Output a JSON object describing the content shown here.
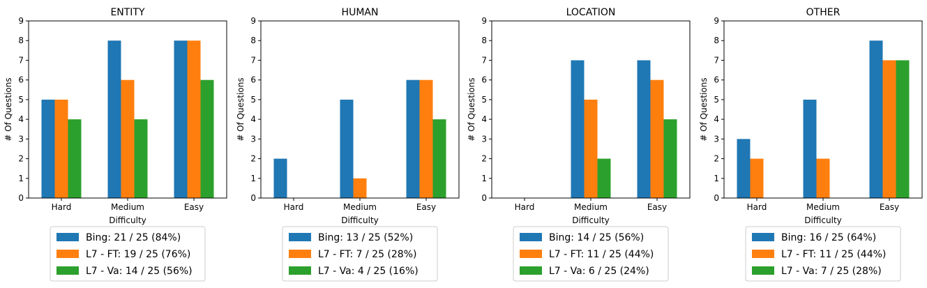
{
  "colors": {
    "bing": "#1f77b4",
    "l7_ft": "#ff7f0e",
    "l7_va": "#2ca02c",
    "axis": "#000000",
    "legend_border": "#cccccc"
  },
  "chart_data": [
    {
      "type": "bar",
      "title": "ENTITY",
      "xlabel": "Difficulty",
      "ylabel": "# Of Questions",
      "ylim": [
        0,
        9
      ],
      "yticks": [
        "0",
        "1",
        "2",
        "3",
        "4",
        "5",
        "6",
        "7",
        "8",
        "9"
      ],
      "categories": [
        "Hard",
        "Medium",
        "Easy"
      ],
      "grid": false,
      "legend_position": "below",
      "series": [
        {
          "name": "Bing: 21 / 25 (84%)",
          "color_key": "bing",
          "values": [
            5,
            8,
            8
          ]
        },
        {
          "name": "L7 - FT: 19 / 25 (76%)",
          "color_key": "l7_ft",
          "values": [
            5,
            6,
            8
          ]
        },
        {
          "name": "L7 - Va: 14 / 25 (56%)",
          "color_key": "l7_va",
          "values": [
            4,
            4,
            6
          ]
        }
      ]
    },
    {
      "type": "bar",
      "title": "HUMAN",
      "xlabel": "Difficulty",
      "ylabel": "# Of Questions",
      "ylim": [
        0,
        9
      ],
      "yticks": [
        "0",
        "1",
        "2",
        "3",
        "4",
        "5",
        "6",
        "7",
        "8",
        "9"
      ],
      "categories": [
        "Hard",
        "Medium",
        "Easy"
      ],
      "grid": false,
      "legend_position": "below",
      "series": [
        {
          "name": "Bing: 13 / 25 (52%)",
          "color_key": "bing",
          "values": [
            2,
            5,
            6
          ]
        },
        {
          "name": "L7 - FT: 7 / 25 (28%)",
          "color_key": "l7_ft",
          "values": [
            0,
            1,
            6
          ]
        },
        {
          "name": "L7 - Va: 4 / 25 (16%)",
          "color_key": "l7_va",
          "values": [
            0,
            0,
            4
          ]
        }
      ]
    },
    {
      "type": "bar",
      "title": "LOCATION",
      "xlabel": "Difficulty",
      "ylabel": "# Of Questions",
      "ylim": [
        0,
        9
      ],
      "yticks": [
        "0",
        "1",
        "2",
        "3",
        "4",
        "5",
        "6",
        "7",
        "8",
        "9"
      ],
      "categories": [
        "Hard",
        "Medium",
        "Easy"
      ],
      "grid": false,
      "legend_position": "below",
      "series": [
        {
          "name": "Bing: 14 / 25 (56%)",
          "color_key": "bing",
          "values": [
            0,
            7,
            7
          ]
        },
        {
          "name": "L7 - FT: 11 / 25 (44%)",
          "color_key": "l7_ft",
          "values": [
            0,
            5,
            6
          ]
        },
        {
          "name": "L7 - Va: 6 / 25 (24%)",
          "color_key": "l7_va",
          "values": [
            0,
            2,
            4
          ]
        }
      ]
    },
    {
      "type": "bar",
      "title": "OTHER",
      "xlabel": "Difficulty",
      "ylabel": "# Of Questions",
      "ylim": [
        0,
        9
      ],
      "yticks": [
        "0",
        "1",
        "2",
        "3",
        "4",
        "5",
        "6",
        "7",
        "8",
        "9"
      ],
      "categories": [
        "Hard",
        "Medium",
        "Easy"
      ],
      "grid": false,
      "legend_position": "below",
      "series": [
        {
          "name": "Bing: 16 / 25 (64%)",
          "color_key": "bing",
          "values": [
            3,
            5,
            8
          ]
        },
        {
          "name": "L7 - FT: 11 / 25 (44%)",
          "color_key": "l7_ft",
          "values": [
            2,
            2,
            7
          ]
        },
        {
          "name": "L7 - Va: 7 / 25 (28%)",
          "color_key": "l7_va",
          "values": [
            0,
            0,
            7
          ]
        }
      ]
    }
  ]
}
